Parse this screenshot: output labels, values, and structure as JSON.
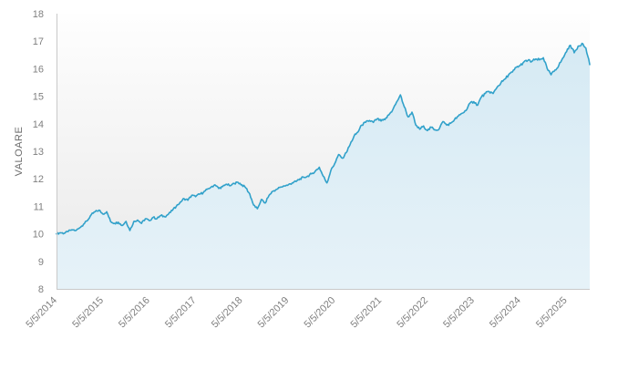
{
  "chart_data": {
    "type": "area",
    "title": "",
    "xlabel": "",
    "ylabel": "VALOARE",
    "ylim": [
      8,
      18
    ],
    "y_ticks": [
      18,
      17,
      16,
      15,
      14,
      13,
      12,
      11,
      10,
      9,
      8
    ],
    "x_tick_labels": [
      "5/5/2014",
      "5/5/2015",
      "5/5/2016",
      "5/5/2017",
      "5/5/2018",
      "5/5/2019",
      "5/5/2020",
      "5/5/2021",
      "5/5/2022",
      "5/5/2023",
      "5/5/2024",
      "5/5/2025"
    ],
    "x_tick_month_index": [
      0,
      12,
      24,
      36,
      48,
      60,
      72,
      84,
      96,
      108,
      120,
      132
    ],
    "grid": "off",
    "legend": "none",
    "series": [
      {
        "name": "VALOARE",
        "start": "5/2014",
        "interval": "monthly",
        "values": [
          10.0,
          10.04,
          10.02,
          10.08,
          10.15,
          10.12,
          10.22,
          10.35,
          10.48,
          10.7,
          10.8,
          10.86,
          10.72,
          10.8,
          10.45,
          10.38,
          10.42,
          10.3,
          10.45,
          10.12,
          10.45,
          10.5,
          10.38,
          10.55,
          10.48,
          10.6,
          10.55,
          10.67,
          10.62,
          10.72,
          10.85,
          11.0,
          11.15,
          11.28,
          11.22,
          11.4,
          11.35,
          11.44,
          11.5,
          11.62,
          11.7,
          11.78,
          11.65,
          11.72,
          11.8,
          11.75,
          11.83,
          11.87,
          11.78,
          11.67,
          11.45,
          11.05,
          10.91,
          11.25,
          11.12,
          11.4,
          11.55,
          11.62,
          11.7,
          11.74,
          11.78,
          11.85,
          11.9,
          12.0,
          12.05,
          12.1,
          12.18,
          12.28,
          12.42,
          12.1,
          11.85,
          12.3,
          12.55,
          12.88,
          12.75,
          12.95,
          13.25,
          13.55,
          13.7,
          13.95,
          14.05,
          14.12,
          14.05,
          14.18,
          14.1,
          14.15,
          14.32,
          14.5,
          14.78,
          15.05,
          14.62,
          14.25,
          14.42,
          13.95,
          13.8,
          13.92,
          13.75,
          13.87,
          13.78,
          13.8,
          14.08,
          13.95,
          14.02,
          14.15,
          14.28,
          14.38,
          14.48,
          14.75,
          14.8,
          14.68,
          14.98,
          15.1,
          15.17,
          15.1,
          15.32,
          15.48,
          15.62,
          15.78,
          15.88,
          16.05,
          16.12,
          16.25,
          16.3,
          16.26,
          16.35,
          16.32,
          16.4,
          16.0,
          15.78,
          15.95,
          16.12,
          16.38,
          16.62,
          16.85,
          16.58,
          16.82,
          16.92,
          16.75,
          16.15
        ]
      }
    ],
    "colors": {
      "line": "#31a1ca",
      "fill_top": "#d6eaf4",
      "fill_bottom": "#e6f2f8",
      "plot_bg_top": "#fefefe",
      "plot_bg_bottom": "#e9e9e9",
      "axis_line": "#c9c9c9",
      "label": "#7f7f7f"
    }
  }
}
